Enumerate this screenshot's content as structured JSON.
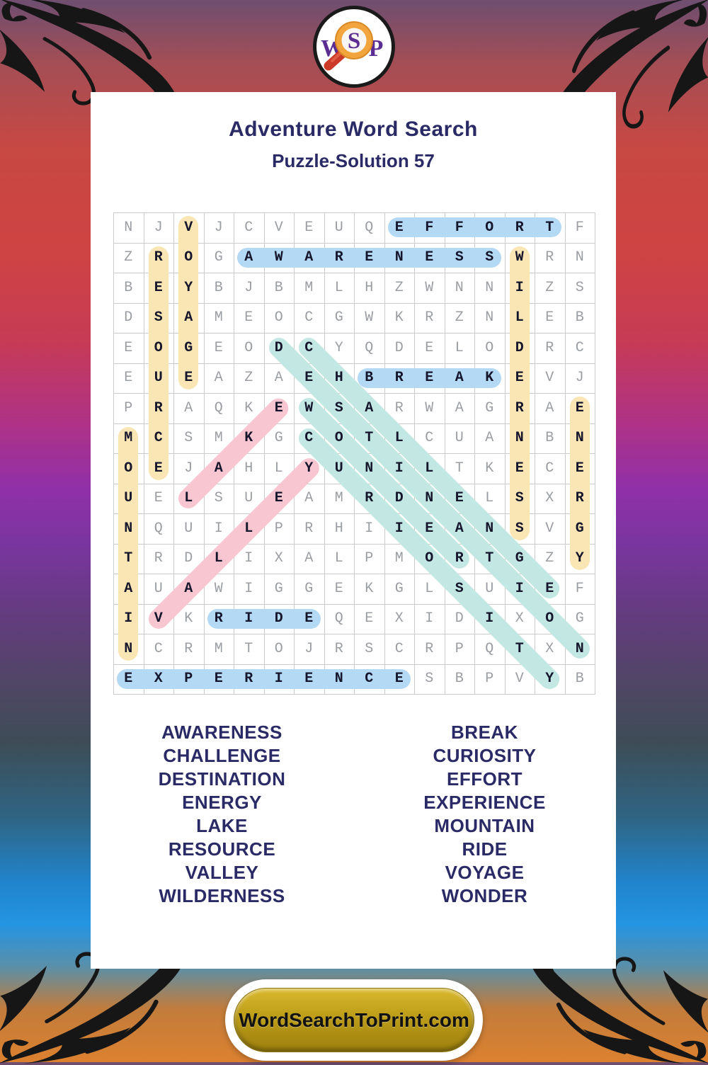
{
  "page": {
    "title": "Adventure Word Search",
    "subtitle": "Puzzle-Solution 57",
    "banner": "WordSearchToPrint.com",
    "logo": {
      "w": "W",
      "s": "S",
      "p": "P"
    }
  },
  "grid": {
    "size": 16,
    "rows": [
      "NJVJCVEUQEFFORTF",
      "ZROGAWARENESSWRN",
      "BEYBJBMLHZWNNIZS",
      "DSAMEOCGWKRZNLEB",
      "EOGEODCYQDELODRC",
      "EUEAZAEHBREAKEVJ",
      "PRAQKEWSARWAGRAE",
      "MCSMKGCOTLCUANBN",
      "OEJAHLYUNILTKECE",
      "UELSUEAMRDNELSXR",
      "NQUILPRHIIEANSVG",
      "TRDLIXALPMORTGZY",
      "AUAWIGGEKGLSUIEF",
      "IVKRIDEQEXIDIXOG",
      "NCRMTOJRSCRPQTXN",
      "EXPERIENCESBPVYB"
    ]
  },
  "solutions": [
    {
      "word": "VOYAGE",
      "row": 1,
      "col": 3,
      "dir": "v",
      "color": "yellow"
    },
    {
      "word": "RESOURCE",
      "row": 2,
      "col": 2,
      "dir": "v",
      "color": "yellow"
    },
    {
      "word": "MOUNTAIN",
      "row": 8,
      "col": 1,
      "dir": "v",
      "color": "yellow"
    },
    {
      "word": "WILDERNESS",
      "row": 2,
      "col": 14,
      "dir": "v",
      "color": "yellow"
    },
    {
      "word": "ENERGY",
      "row": 7,
      "col": 16,
      "dir": "v",
      "color": "yellow"
    },
    {
      "word": "EFFORT",
      "row": 1,
      "col": 10,
      "dir": "h",
      "color": "blue"
    },
    {
      "word": "AWARENESS",
      "row": 2,
      "col": 5,
      "dir": "h",
      "color": "blue"
    },
    {
      "word": "BREAK",
      "row": 6,
      "col": 9,
      "dir": "h",
      "color": "blue"
    },
    {
      "word": "RIDE",
      "row": 14,
      "col": 4,
      "dir": "h",
      "color": "blue"
    },
    {
      "word": "EXPERIENCE",
      "row": 16,
      "col": 1,
      "dir": "h",
      "color": "blue"
    },
    {
      "word": "DESTINATION",
      "row": 5,
      "col": 6,
      "dir": "dr",
      "color": "teal"
    },
    {
      "word": "CHALLENGE",
      "row": 5,
      "col": 7,
      "dir": "dr",
      "color": "teal"
    },
    {
      "word": "WONDER",
      "row": 7,
      "col": 7,
      "dir": "dr",
      "color": "teal"
    },
    {
      "word": "CURIOSITY",
      "row": 8,
      "col": 7,
      "dir": "dr",
      "color": "teal"
    },
    {
      "word": "LAKE",
      "row": 10,
      "col": 3,
      "dir": "ur",
      "color": "pink"
    },
    {
      "word": "VALLEY",
      "row": 14,
      "col": 2,
      "dir": "ur",
      "color": "pink"
    }
  ],
  "word_list": {
    "left": [
      "AWARENESS",
      "CHALLENGE",
      "DESTINATION",
      "ENERGY",
      "LAKE",
      "RESOURCE",
      "VALLEY",
      "WILDERNESS"
    ],
    "right": [
      "BREAK",
      "CURIOSITY",
      "EFFORT",
      "EXPERIENCE",
      "MOUNTAIN",
      "RIDE",
      "VOYAGE",
      "WONDER"
    ]
  },
  "colors": {
    "highlight_blue": "#B4D9F4",
    "highlight_yellow": "#FAE6B4",
    "highlight_teal": "#C3E7E2",
    "highlight_pink": "#F8C6D1",
    "title_navy": "#2A2A66",
    "letter_grey": "#9A9DA2",
    "letter_dark": "#15152B",
    "banner_gold": "#C0A01A",
    "logo_purple": "#5B2C92"
  }
}
